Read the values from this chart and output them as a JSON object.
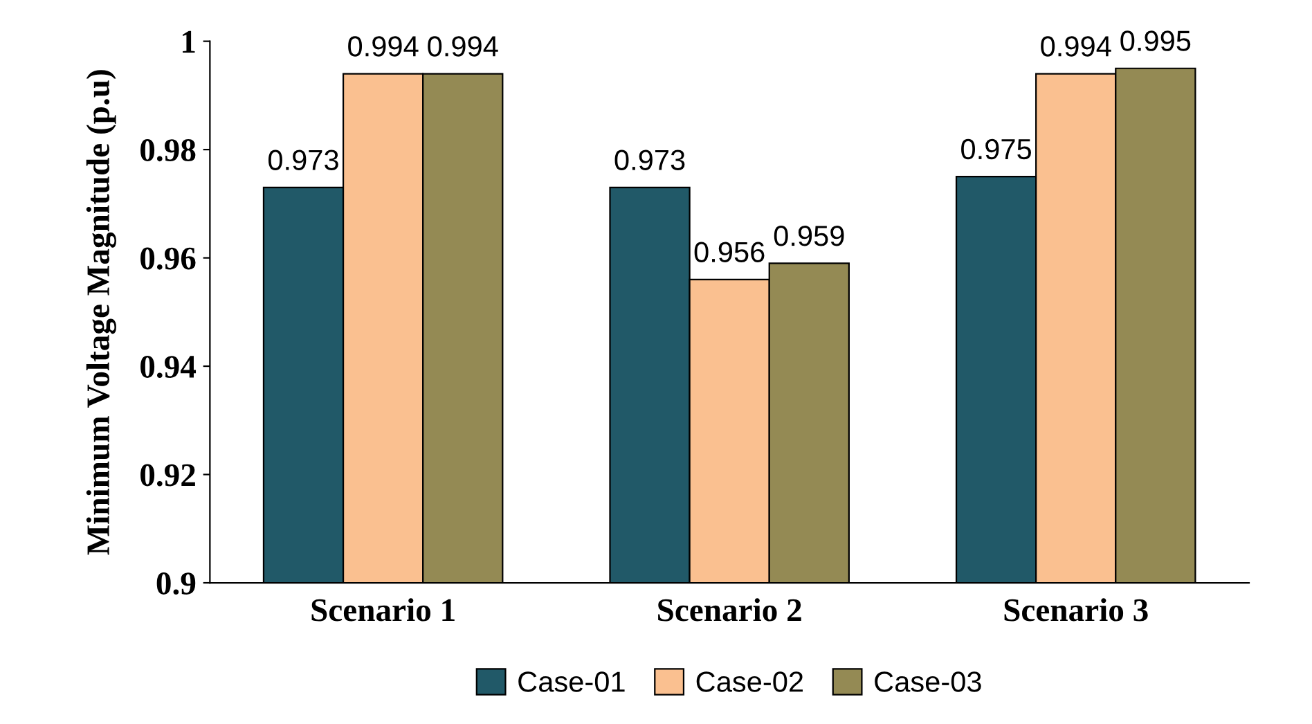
{
  "chart_data": {
    "type": "bar",
    "ylabel": "Minimum Voltage Magnitude (p.u)",
    "categories": [
      "Scenario 1",
      "Scenario 2",
      "Scenario 3"
    ],
    "series": [
      {
        "name": "Case-01",
        "color": "#215968",
        "values": [
          0.973,
          0.973,
          0.975
        ]
      },
      {
        "name": "Case-02",
        "color": "#fac090",
        "values": [
          0.994,
          0.956,
          0.994
        ]
      },
      {
        "name": "Case-03",
        "color": "#948a54",
        "values": [
          0.994,
          0.959,
          0.995
        ]
      }
    ],
    "ylim": [
      0.9,
      1
    ],
    "yticks": [
      0.9,
      0.92,
      0.94,
      0.96,
      0.98,
      1
    ],
    "data_labels": true,
    "grid": false,
    "legend": "bottom"
  }
}
